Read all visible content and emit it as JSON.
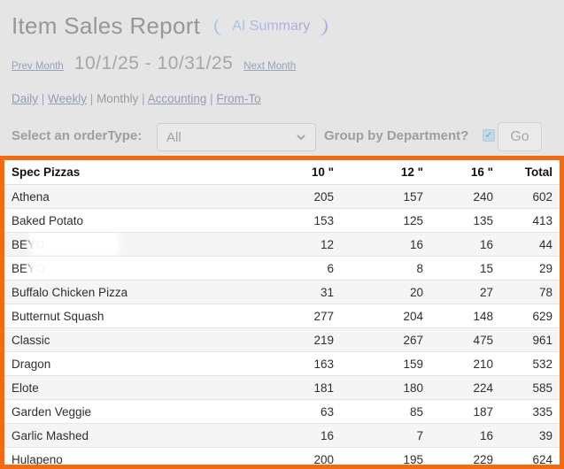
{
  "page": {
    "background_color": "#e5e5e5",
    "accent_orange": "#f26b13"
  },
  "header": {
    "title": "Item Sales Report",
    "ai_summary_label": "AI Summary"
  },
  "date_nav": {
    "prev_label": "Prev Month",
    "range": "10/1/25 - 10/31/25",
    "next_label": "Next Month"
  },
  "view_tabs": {
    "separator": "|",
    "items": [
      {
        "label": "Daily",
        "link": true
      },
      {
        "label": "Weekly",
        "link": true
      },
      {
        "label": "Monthly",
        "link": false
      },
      {
        "label": "Accounting",
        "link": true
      },
      {
        "label": "From-To",
        "link": true
      }
    ]
  },
  "filters": {
    "order_type_label": "Select an orderType:",
    "order_type_value": "All",
    "group_by_label": "Group by Department?",
    "group_by_checked": true,
    "check_glyph": "✓",
    "go_label": "Go"
  },
  "table": {
    "columns": [
      "Spec Pizzas",
      "10 \"",
      "12 \"",
      "16 \"",
      "Total"
    ],
    "rows": [
      {
        "name": "Athena",
        "redacted": false,
        "values": [
          205,
          157,
          240,
          602
        ]
      },
      {
        "name": "Baked Potato",
        "redacted": false,
        "values": [
          153,
          125,
          135,
          413
        ]
      },
      {
        "name": "BEYO",
        "redacted": true,
        "values": [
          12,
          16,
          16,
          44
        ]
      },
      {
        "name": "BEYO",
        "redacted": true,
        "values": [
          6,
          8,
          15,
          29
        ]
      },
      {
        "name": "Buffalo Chicken Pizza",
        "redacted": false,
        "values": [
          31,
          20,
          27,
          78
        ]
      },
      {
        "name": "Butternut Squash",
        "redacted": false,
        "values": [
          277,
          204,
          148,
          629
        ]
      },
      {
        "name": "Classic",
        "redacted": false,
        "values": [
          219,
          267,
          475,
          961
        ]
      },
      {
        "name": "Dragon",
        "redacted": false,
        "values": [
          163,
          159,
          210,
          532
        ]
      },
      {
        "name": "Elote",
        "redacted": false,
        "values": [
          181,
          180,
          224,
          585
        ]
      },
      {
        "name": "Garden Veggie",
        "redacted": false,
        "values": [
          63,
          85,
          187,
          335
        ]
      },
      {
        "name": "Garlic Mashed",
        "redacted": false,
        "values": [
          16,
          7,
          16,
          39
        ]
      },
      {
        "name": "Hulapeno",
        "redacted": false,
        "values": [
          200,
          195,
          229,
          624
        ]
      }
    ]
  }
}
